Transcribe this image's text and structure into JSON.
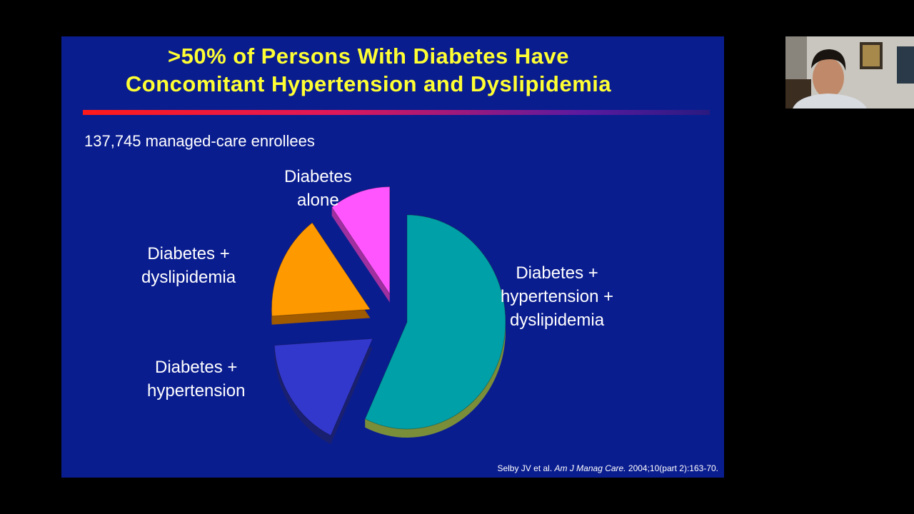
{
  "slide": {
    "title_line1": ">50% of Persons With Diabetes Have",
    "title_line2": "Concomitant Hypertension and Dyslipidemia",
    "subtitle": "137,745 managed-care enrollees",
    "citation_authors": "Selby JV et al.",
    "citation_journal": "Am J Manag Care.",
    "citation_ref": "2004;10(part 2):163-70."
  },
  "chart_data": {
    "type": "pie",
    "title": ">50% of Persons With Diabetes Have Concomitant Hypertension and Dyslipidemia",
    "slices": [
      {
        "label": "Diabetes + hypertension + dyslipidemia",
        "line1": "Diabetes +",
        "line2": "hypertension +",
        "line3": "dyslipidemia",
        "value": 57,
        "color": "#00a0a8",
        "side": "#7a8e3a"
      },
      {
        "label": "Diabetes + hypertension",
        "line1": "Diabetes +",
        "line2": "hypertension",
        "value": 17,
        "color": "#3338cc",
        "side": "#1a2070"
      },
      {
        "label": "Diabetes + dyslipidemia",
        "line1": "Diabetes +",
        "line2": "dyslipidemia",
        "value": 16,
        "color": "#ff9900",
        "side": "#a05a00"
      },
      {
        "label": "Diabetes alone",
        "line1": "Diabetes",
        "line2": "alone",
        "value": 10,
        "color": "#ff55ff",
        "side": "#a030a0"
      }
    ],
    "exploded": true,
    "style": "3d"
  },
  "webcam": {
    "description_icon": "presenter-video-icon"
  }
}
